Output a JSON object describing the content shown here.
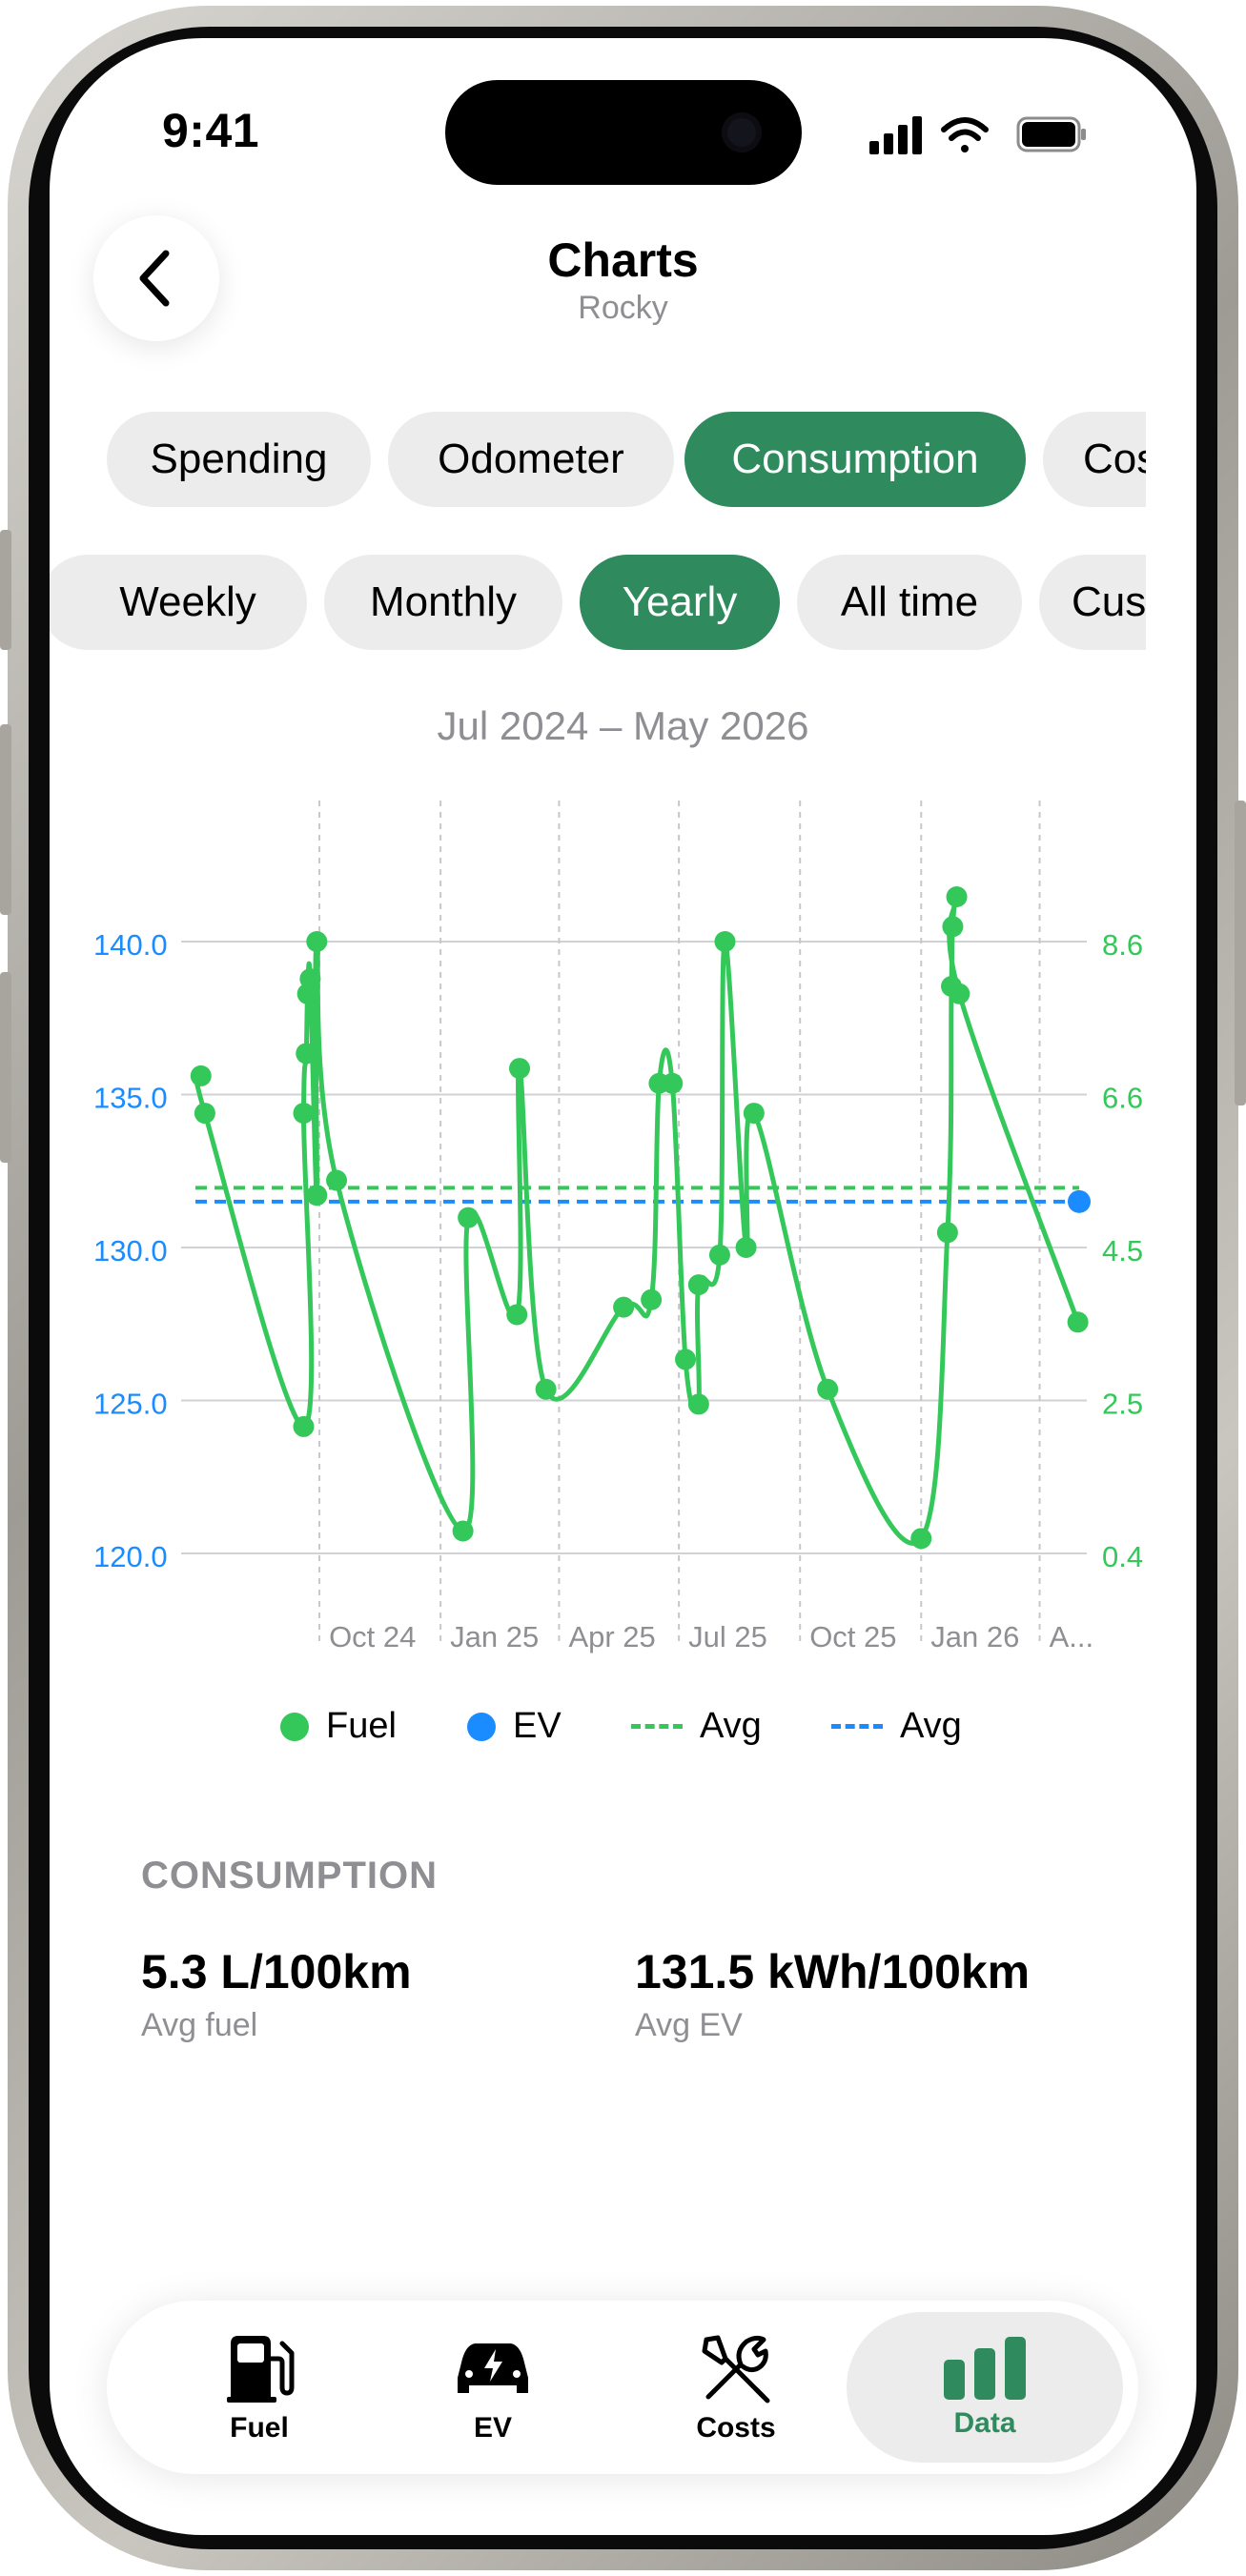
{
  "status_bar": {
    "time": "9:41"
  },
  "header": {
    "title": "Charts",
    "subtitle": "Rocky"
  },
  "category_tabs": [
    {
      "label": "Spending",
      "active": false
    },
    {
      "label": "Odometer",
      "active": false
    },
    {
      "label": "Consumption",
      "active": true
    },
    {
      "label": "Cos",
      "active": false
    }
  ],
  "period_tabs": [
    {
      "label": "Weekly",
      "active": false
    },
    {
      "label": "Monthly",
      "active": false
    },
    {
      "label": "Yearly",
      "active": true
    },
    {
      "label": "All time",
      "active": false
    },
    {
      "label": "Cus",
      "active": false
    }
  ],
  "date_range": "Jul 2024 – May 2026",
  "chart_data": {
    "type": "line",
    "title": "",
    "xlabel": "",
    "ylabel": "",
    "x_ticks": [
      "Oct 24",
      "Jan 25",
      "Apr 25",
      "Jul 25",
      "Oct 25",
      "Jan 26",
      "A..."
    ],
    "y_left_ticks": [
      "140.0",
      "135.0",
      "130.0",
      "125.0",
      "120.0"
    ],
    "y_left_range": [
      120,
      140
    ],
    "y_right_ticks": [
      "8.6",
      "6.6",
      "4.5",
      "2.5",
      "0.4"
    ],
    "y_right_range": [
      0.4,
      8.6
    ],
    "grid": true,
    "legend_position": "bottom",
    "x_range": [
      "2024-07-01",
      "2026-05-01"
    ],
    "series": [
      {
        "name": "Fuel",
        "axis": "right",
        "color": "#34c759",
        "points": [
          [
            "2024-07-03",
            6.8
          ],
          [
            "2024-07-06",
            6.3
          ],
          [
            "2024-09-19",
            2.1
          ],
          [
            "2024-09-19",
            6.3
          ],
          [
            "2024-09-21",
            7.1
          ],
          [
            "2024-09-22",
            7.9
          ],
          [
            "2024-09-24",
            8.1
          ],
          [
            "2024-09-29",
            5.2
          ],
          [
            "2024-09-29",
            8.6
          ],
          [
            "2024-10-14",
            5.4
          ],
          [
            "2025-01-18",
            0.7
          ],
          [
            "2025-01-22",
            4.9
          ],
          [
            "2025-02-28",
            3.6
          ],
          [
            "2025-03-02",
            6.9
          ],
          [
            "2025-03-22",
            2.6
          ],
          [
            "2025-05-20",
            3.7
          ],
          [
            "2025-06-10",
            3.8
          ],
          [
            "2025-06-16",
            6.7
          ],
          [
            "2025-06-26",
            6.7
          ],
          [
            "2025-07-06",
            3.0
          ],
          [
            "2025-07-16",
            2.4
          ],
          [
            "2025-07-16",
            4.0
          ],
          [
            "2025-08-01",
            4.4
          ],
          [
            "2025-08-05",
            8.6
          ],
          [
            "2025-08-21",
            4.5
          ],
          [
            "2025-08-27",
            6.3
          ],
          [
            "2025-10-22",
            2.6
          ],
          [
            "2026-01-01",
            0.6
          ],
          [
            "2026-01-21",
            4.7
          ],
          [
            "2026-01-24",
            8.0
          ],
          [
            "2026-01-25",
            8.8
          ],
          [
            "2026-01-28",
            9.2
          ],
          [
            "2026-01-30",
            7.9
          ],
          [
            "2026-04-30",
            3.5
          ]
        ]
      },
      {
        "name": "EV",
        "axis": "left",
        "color": "#1a8cff",
        "points": [
          [
            "2026-05-01",
            131.5
          ]
        ]
      },
      {
        "name": "Avg",
        "axis": "right",
        "color": "#34c759",
        "style": "dashed",
        "value": 5.3
      },
      {
        "name": "Avg",
        "axis": "left",
        "color": "#1a8cff",
        "style": "dashed",
        "value": 131.5
      }
    ]
  },
  "legend": [
    {
      "label": "Fuel",
      "kind": "dot",
      "color": "#34c759"
    },
    {
      "label": "EV",
      "kind": "dot",
      "color": "#1a8cff"
    },
    {
      "label": "Avg",
      "kind": "dash",
      "color": "#34c759"
    },
    {
      "label": "Avg",
      "kind": "dash",
      "color": "#1a8cff"
    }
  ],
  "stats": {
    "section_title": "CONSUMPTION",
    "fuel_value": "5.3 L/100km",
    "fuel_label": "Avg fuel",
    "ev_value": "131.5 kWh/100km",
    "ev_label": "Avg EV"
  },
  "tab_bar": [
    {
      "label": "Fuel",
      "icon": "fuel-pump-icon",
      "active": false
    },
    {
      "label": "EV",
      "icon": "ev-car-icon",
      "active": false
    },
    {
      "label": "Costs",
      "icon": "tools-icon",
      "active": false
    },
    {
      "label": "Data",
      "icon": "bar-chart-icon",
      "active": true
    }
  ],
  "colors": {
    "accent": "#2f8a5d",
    "fuel": "#34c759",
    "ev": "#1a8cff"
  }
}
